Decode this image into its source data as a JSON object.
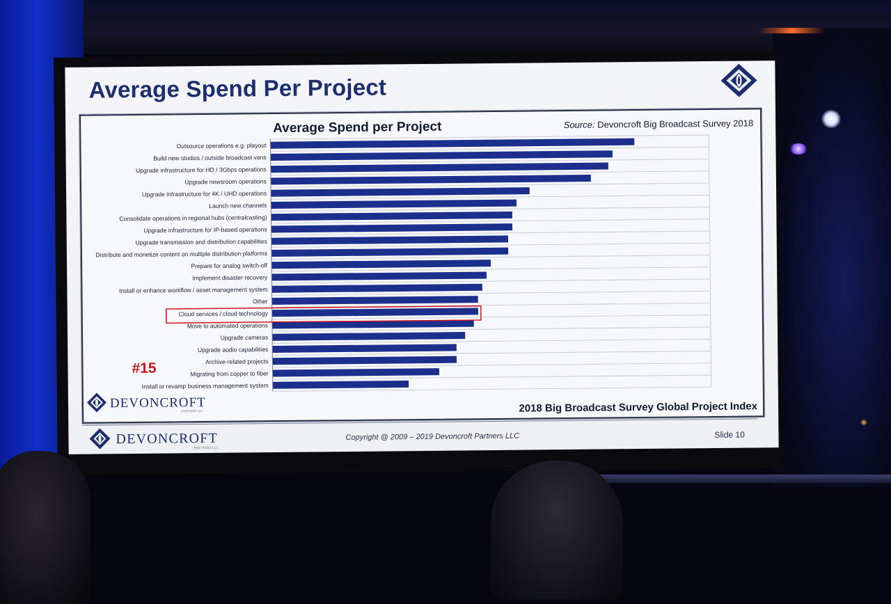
{
  "slide": {
    "title": "Average Spend Per Project",
    "copyright": "Copyright @ 2009 – 2019 Devoncroft Partners LLC",
    "slide_number": "Slide 10",
    "brand": "DEVONCROFT",
    "brand_sub": "PARTNERS LLC"
  },
  "chart_data": {
    "type": "bar",
    "orientation": "horizontal",
    "title": "Average Spend per Project",
    "source_prefix": "Source:",
    "source_text": "Devoncroft Big Broadcast Survey 2018",
    "footer": "2018 Big Broadcast Survey Global Project Index",
    "highlight_label": "#15",
    "highlight_index": 14,
    "bar_color": "#1c2f8c",
    "highlight_color": "#d0121e",
    "grid": true,
    "xlim": [
      0,
      100
    ],
    "categories": [
      "Outsource operations e.g. playout",
      "Build new studios / outside broadcast vans",
      "Upgrade infrastructure for HD / 3Gbps operations",
      "Upgrade newsroom operations",
      "Upgrade infrastructure for 4K / UHD operations",
      "Launch new channels",
      "Consolidate operations in regional hubs (centralcasting)",
      "Upgrade infrastructure for IP-based operations",
      "Upgrade transmission and distribution capabilities",
      "Distribute and monetize content on multiple distribution platforms",
      "Prepare for analog switch-off",
      "Implement disaster recovery",
      "Install or enhance workflow / asset management system",
      "Other",
      "Cloud services / cloud technology",
      "Move to automated operations",
      "Upgrade cameras",
      "Upgrade audio capabilities",
      "Archive-related projects",
      "Migrating from copper to fiber",
      "Install or revamp business management system"
    ],
    "values": [
      83,
      78,
      77,
      73,
      59,
      56,
      55,
      55,
      54,
      54,
      50,
      49,
      48,
      47,
      47,
      46,
      44,
      42,
      42,
      38,
      31
    ]
  }
}
